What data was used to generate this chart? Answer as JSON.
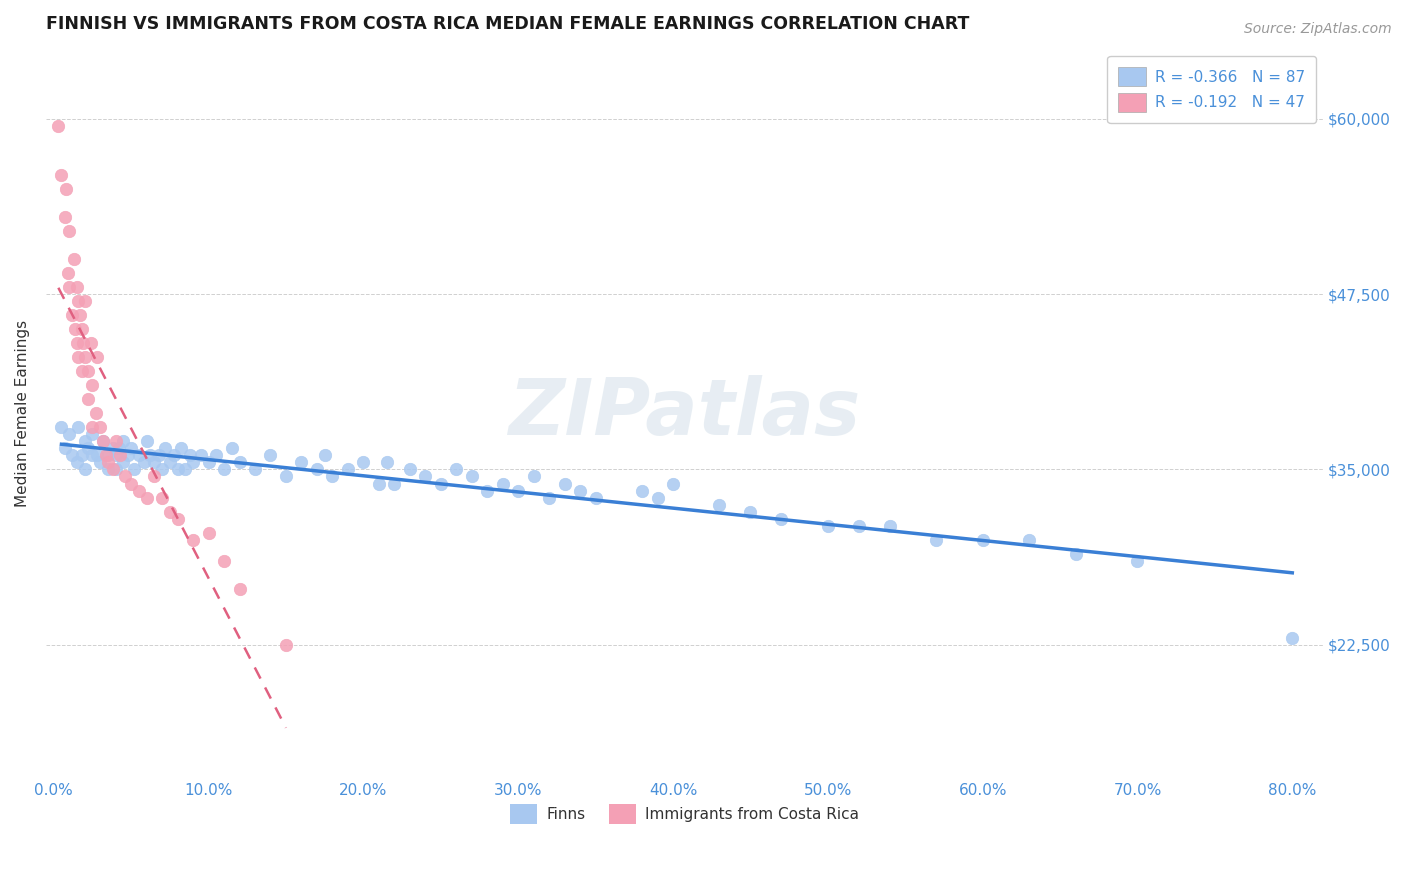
{
  "title": "FINNISH VS IMMIGRANTS FROM COSTA RICA MEDIAN FEMALE EARNINGS CORRELATION CHART",
  "source": "Source: ZipAtlas.com",
  "ylabel": "Median Female Earnings",
  "xlim": [
    -0.005,
    0.82
  ],
  "ylim": [
    13000,
    65000
  ],
  "yticks": [
    22500,
    35000,
    47500,
    60000
  ],
  "ytick_labels": [
    "$22,500",
    "$35,000",
    "$47,500",
    "$60,000"
  ],
  "xticks": [
    0.0,
    0.1,
    0.2,
    0.3,
    0.4,
    0.5,
    0.6,
    0.7,
    0.8
  ],
  "xtick_labels": [
    "0.0%",
    "10.0%",
    "20.0%",
    "30.0%",
    "40.0%",
    "50.0%",
    "60.0%",
    "70.0%",
    "80.0%"
  ],
  "finns_color": "#a8c8f0",
  "costa_rica_color": "#f4a0b5",
  "finns_trend_color": "#3a7fd5",
  "costa_rica_trend_color": "#e06080",
  "background_color": "#ffffff",
  "grid_color": "#d0d0d0",
  "axis_label_color": "#4a90d9",
  "text_color": "#333333",
  "legend_R_finns": "R = -0.366",
  "legend_N_finns": "N = 87",
  "legend_R_cr": "R = -0.192",
  "legend_N_cr": "N = 47",
  "finns_x": [
    0.005,
    0.007,
    0.01,
    0.012,
    0.015,
    0.016,
    0.018,
    0.02,
    0.02,
    0.022,
    0.025,
    0.025,
    0.028,
    0.03,
    0.032,
    0.035,
    0.035,
    0.038,
    0.04,
    0.04,
    0.042,
    0.045,
    0.045,
    0.048,
    0.05,
    0.052,
    0.055,
    0.058,
    0.06,
    0.062,
    0.065,
    0.068,
    0.07,
    0.072,
    0.075,
    0.078,
    0.08,
    0.082,
    0.085,
    0.088,
    0.09,
    0.095,
    0.1,
    0.105,
    0.11,
    0.115,
    0.12,
    0.13,
    0.14,
    0.15,
    0.16,
    0.17,
    0.175,
    0.18,
    0.19,
    0.2,
    0.21,
    0.215,
    0.22,
    0.23,
    0.24,
    0.25,
    0.26,
    0.27,
    0.28,
    0.29,
    0.3,
    0.31,
    0.32,
    0.33,
    0.34,
    0.35,
    0.38,
    0.39,
    0.4,
    0.43,
    0.45,
    0.47,
    0.5,
    0.52,
    0.54,
    0.57,
    0.6,
    0.63,
    0.66,
    0.7,
    0.8
  ],
  "finns_y": [
    38000,
    36500,
    37500,
    36000,
    35500,
    38000,
    36000,
    37000,
    35000,
    36500,
    36000,
    37500,
    36000,
    35500,
    37000,
    36000,
    35000,
    36500,
    36000,
    35000,
    36500,
    35500,
    37000,
    36000,
    36500,
    35000,
    36000,
    35500,
    37000,
    36000,
    35500,
    36000,
    35000,
    36500,
    35500,
    36000,
    35000,
    36500,
    35000,
    36000,
    35500,
    36000,
    35500,
    36000,
    35000,
    36500,
    35500,
    35000,
    36000,
    34500,
    35500,
    35000,
    36000,
    34500,
    35000,
    35500,
    34000,
    35500,
    34000,
    35000,
    34500,
    34000,
    35000,
    34500,
    33500,
    34000,
    33500,
    34500,
    33000,
    34000,
    33500,
    33000,
    33500,
    33000,
    34000,
    32500,
    32000,
    31500,
    31000,
    31000,
    31000,
    30000,
    30000,
    30000,
    29000,
    28500,
    23000
  ],
  "cr_x": [
    0.003,
    0.005,
    0.007,
    0.008,
    0.009,
    0.01,
    0.01,
    0.012,
    0.013,
    0.014,
    0.015,
    0.015,
    0.016,
    0.016,
    0.017,
    0.018,
    0.018,
    0.019,
    0.02,
    0.02,
    0.022,
    0.022,
    0.024,
    0.025,
    0.025,
    0.027,
    0.028,
    0.03,
    0.032,
    0.034,
    0.035,
    0.038,
    0.04,
    0.043,
    0.046,
    0.05,
    0.055,
    0.06,
    0.065,
    0.07,
    0.075,
    0.08,
    0.09,
    0.1,
    0.11,
    0.12,
    0.15
  ],
  "cr_y": [
    59500,
    56000,
    53000,
    55000,
    49000,
    52000,
    48000,
    46000,
    50000,
    45000,
    48000,
    44000,
    47000,
    43000,
    46000,
    45000,
    42000,
    44000,
    43000,
    47000,
    42000,
    40000,
    44000,
    38000,
    41000,
    39000,
    43000,
    38000,
    37000,
    36000,
    35500,
    35000,
    37000,
    36000,
    34500,
    34000,
    33500,
    33000,
    34500,
    33000,
    32000,
    31500,
    30000,
    30500,
    28500,
    26500,
    22500
  ],
  "watermark_text": "ZIPatlas",
  "title_fontsize": 12.5,
  "label_fontsize": 11,
  "tick_fontsize": 11,
  "source_fontsize": 10,
  "legend_fontsize": 11
}
